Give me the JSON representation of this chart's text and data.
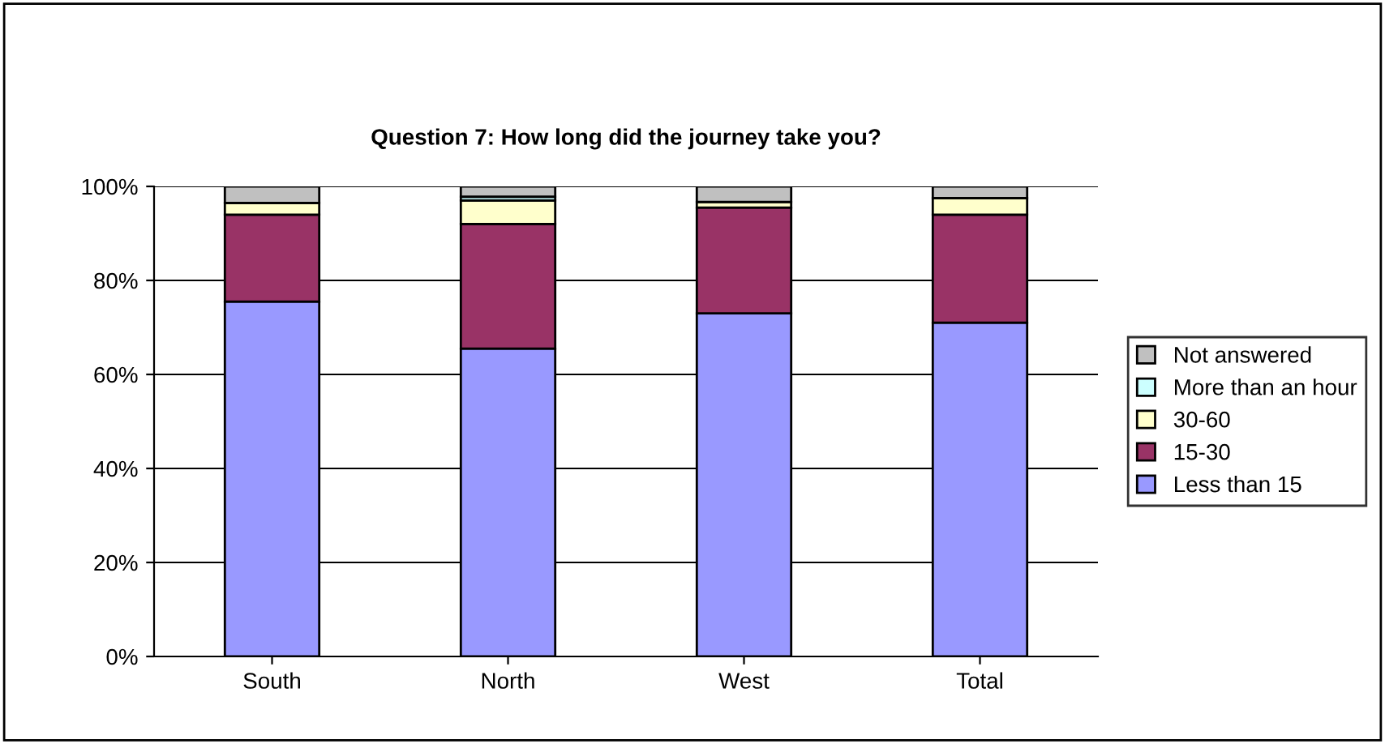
{
  "chart_data": {
    "type": "bar",
    "stacked": true,
    "title": "Question 7: How long did the journey take you?",
    "categories": [
      "South",
      "North",
      "West",
      "Total"
    ],
    "series": [
      {
        "name": "Less than 15",
        "color": "#9999ff",
        "values": [
          75.5,
          65.5,
          73,
          71
        ]
      },
      {
        "name": "15-30",
        "color": "#993366",
        "values": [
          18.5,
          26.5,
          22.5,
          23
        ]
      },
      {
        "name": "30-60",
        "color": "#ffffcc",
        "values": [
          2.5,
          5,
          1.2,
          3.5
        ]
      },
      {
        "name": "More than an hour",
        "color": "#ccffff",
        "values": [
          0,
          0.8,
          null,
          null
        ]
      },
      {
        "name": "Not answered",
        "color": "#c0c0c0",
        "values": [
          3.5,
          2.2,
          3.3,
          2.5
        ]
      }
    ],
    "ylim": [
      0,
      100
    ],
    "yticks": [
      {
        "value": 0,
        "label": "0%"
      },
      {
        "value": 20,
        "label": "20%"
      },
      {
        "value": 40,
        "label": "40%"
      },
      {
        "value": 60,
        "label": "60%"
      },
      {
        "value": 80,
        "label": "80%"
      },
      {
        "value": 100,
        "label": "100%"
      }
    ],
    "grid": "y",
    "legend": "right"
  }
}
